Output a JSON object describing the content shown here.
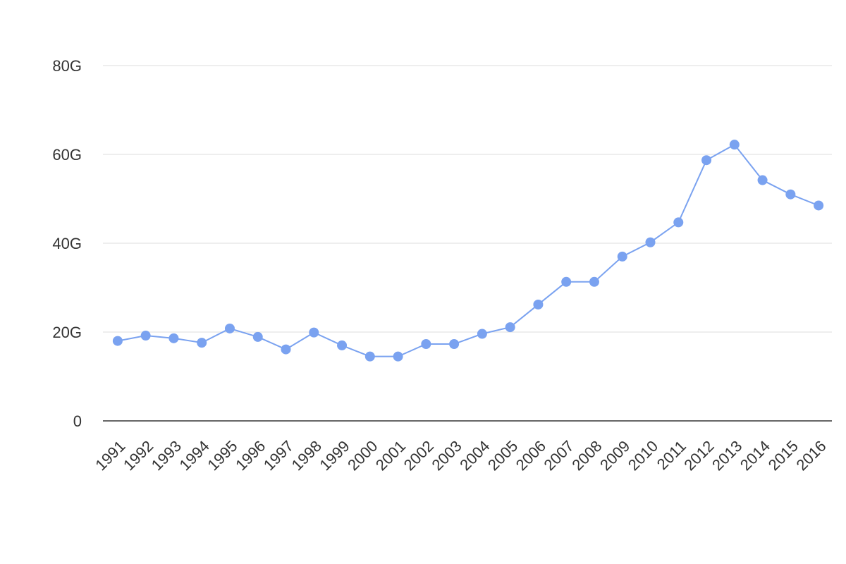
{
  "chart_data": {
    "type": "line",
    "categories": [
      "1991",
      "1992",
      "1993",
      "1994",
      "1995",
      "1996",
      "1997",
      "1998",
      "1999",
      "2000",
      "2001",
      "2002",
      "2003",
      "2004",
      "2005",
      "2006",
      "2007",
      "2008",
      "2009",
      "2010",
      "2011",
      "2012",
      "2013",
      "2014",
      "2015",
      "2016"
    ],
    "series": [
      {
        "color": "#7aa2f0",
        "values": [
          18.0,
          19.2,
          18.6,
          17.6,
          20.8,
          18.9,
          16.1,
          19.9,
          17.0,
          14.5,
          14.5,
          17.3,
          17.3,
          19.6,
          21.1,
          26.2,
          31.3,
          31.3,
          37.0,
          40.2,
          44.7,
          58.7,
          62.2,
          54.2,
          51.0,
          48.5
        ]
      }
    ],
    "ylim": [
      0,
      80
    ],
    "yticks": [
      0,
      {
        "value": 20,
        "label": "20G"
      },
      {
        "value": 40,
        "label": "40G"
      },
      {
        "value": 60,
        "label": "60G"
      },
      {
        "value": 80,
        "label": "80G"
      }
    ],
    "grid": true
  }
}
